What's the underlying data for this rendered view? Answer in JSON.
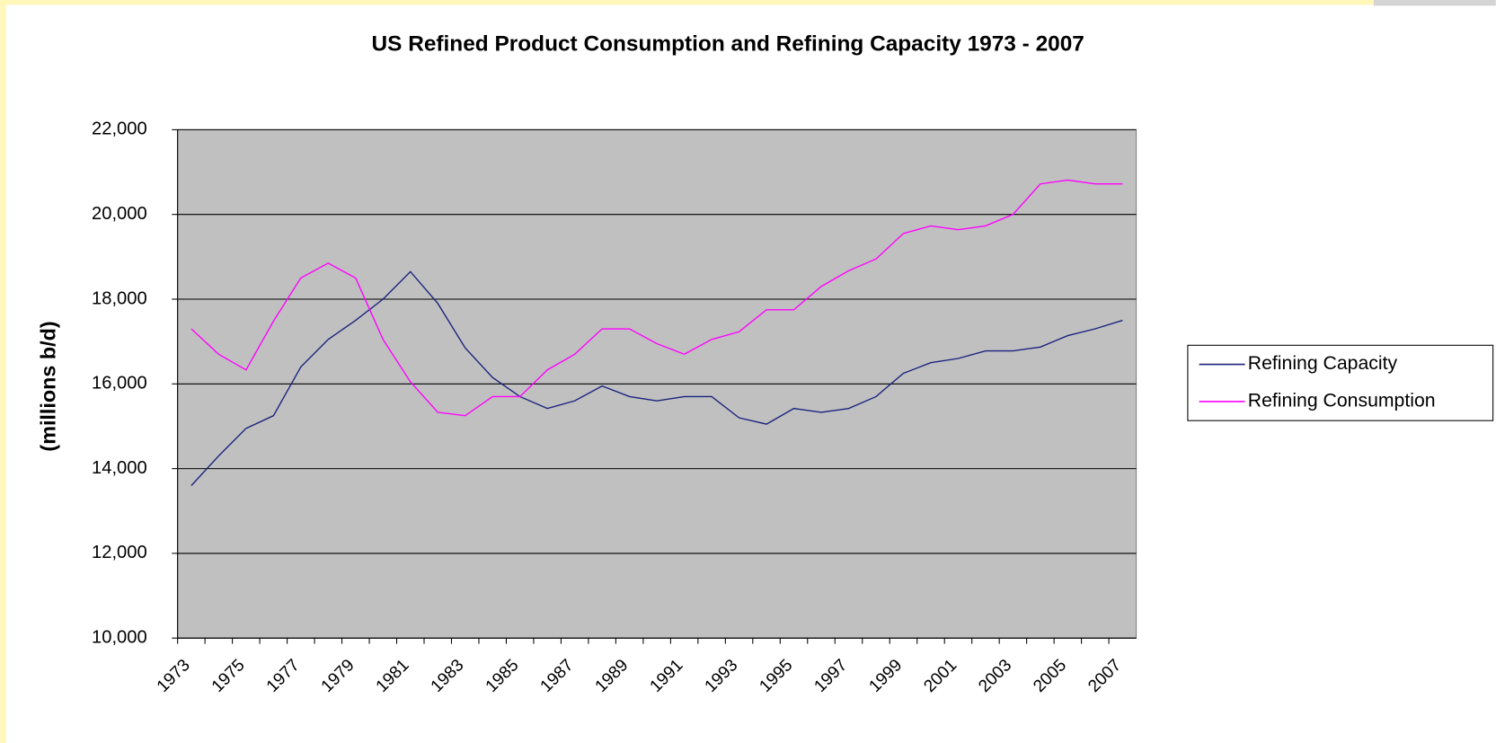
{
  "chart_data": {
    "type": "line",
    "title": "US Refined Product Consumption and Refining Capacity 1973 - 2007",
    "ylabel": "(millions b/d)",
    "categories": [
      "1973",
      null,
      "1975",
      null,
      "1977",
      null,
      "1979",
      null,
      "1981",
      null,
      "1983",
      null,
      "1985",
      null,
      "1987",
      null,
      "1989",
      null,
      "1991",
      null,
      "1993",
      null,
      "1995",
      null,
      "1997",
      null,
      "1999",
      null,
      "2001",
      null,
      "2003",
      null,
      "2005",
      null,
      "2007"
    ],
    "series": [
      {
        "name": "Refining Capacity",
        "color": "#1a237e",
        "values": [
          13600,
          14300,
          14950,
          15250,
          16400,
          17050,
          17500,
          18000,
          18650,
          17900,
          16850,
          16150,
          15700,
          15420,
          15600,
          15950,
          15700,
          15600,
          15700,
          15700,
          15200,
          15050,
          15420,
          15330,
          15420,
          15700,
          16250,
          16500,
          16600,
          16780,
          16780,
          16870,
          17140,
          17300,
          17500
        ]
      },
      {
        "name": "Refining Consumption",
        "color": "#ff00ff",
        "values": [
          17300,
          16700,
          16330,
          17480,
          18500,
          18850,
          18500,
          17050,
          16050,
          15330,
          15250,
          15700,
          15700,
          16330,
          16700,
          17300,
          17300,
          16950,
          16700,
          17050,
          17230,
          17750,
          17750,
          18300,
          18670,
          18950,
          19550,
          19730,
          19640,
          19730,
          20000,
          20720,
          20810,
          20720,
          20720
        ]
      }
    ],
    "ylim": [
      10000,
      22000
    ],
    "yticks": [
      {
        "value": 10000,
        "label": "10,000"
      },
      {
        "value": 12000,
        "label": "12,000"
      },
      {
        "value": 14000,
        "label": "14,000"
      },
      {
        "value": 16000,
        "label": "16,000"
      },
      {
        "value": 18000,
        "label": "18,000"
      },
      {
        "value": 20000,
        "label": "20,000"
      },
      {
        "value": 22000,
        "label": "22,000"
      }
    ],
    "grid": true,
    "legend": "right"
  }
}
